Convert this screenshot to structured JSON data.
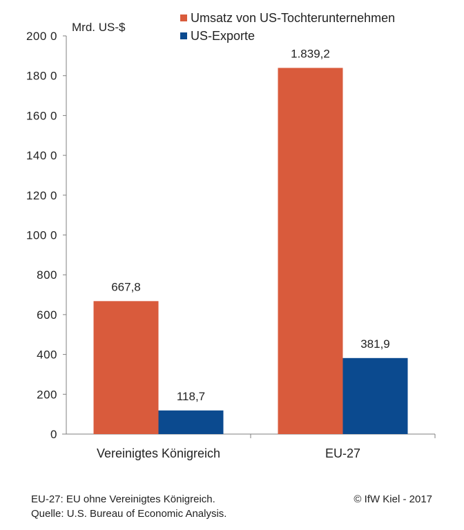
{
  "chart_data": {
    "type": "bar",
    "unit_label": "Mrd. US-$",
    "categories": [
      "Vereinigtes Königreich",
      "EU-27"
    ],
    "series": [
      {
        "name": "Umsatz von US-Tochterunternehmen",
        "color": "#d95b3c",
        "values": [
          667.8,
          1839.2
        ],
        "labels": [
          "667,8",
          "1.839,2"
        ]
      },
      {
        "name": "US-Exporte",
        "color": "#0b4a8f",
        "values": [
          118.7,
          381.9
        ],
        "labels": [
          "118,7",
          "381,9"
        ]
      }
    ],
    "ylim": [
      0,
      2000
    ],
    "yticks": [
      0,
      200,
      400,
      600,
      800,
      1000,
      1200,
      1400,
      1600,
      1800,
      2000
    ],
    "ytick_labels": [
      "0",
      "200",
      "400",
      "600",
      "800",
      "100 0",
      "120 0",
      "140 0",
      "160 0",
      "180 0",
      "200 0"
    ],
    "grid": false,
    "legend_position": "top-right"
  },
  "footer": {
    "note": "EU-27: EU ohne Vereinigtes Königreich.",
    "source": "Quelle: U.S. Bureau of Economic Analysis.",
    "credit": "© IfW Kiel - 2017"
  }
}
